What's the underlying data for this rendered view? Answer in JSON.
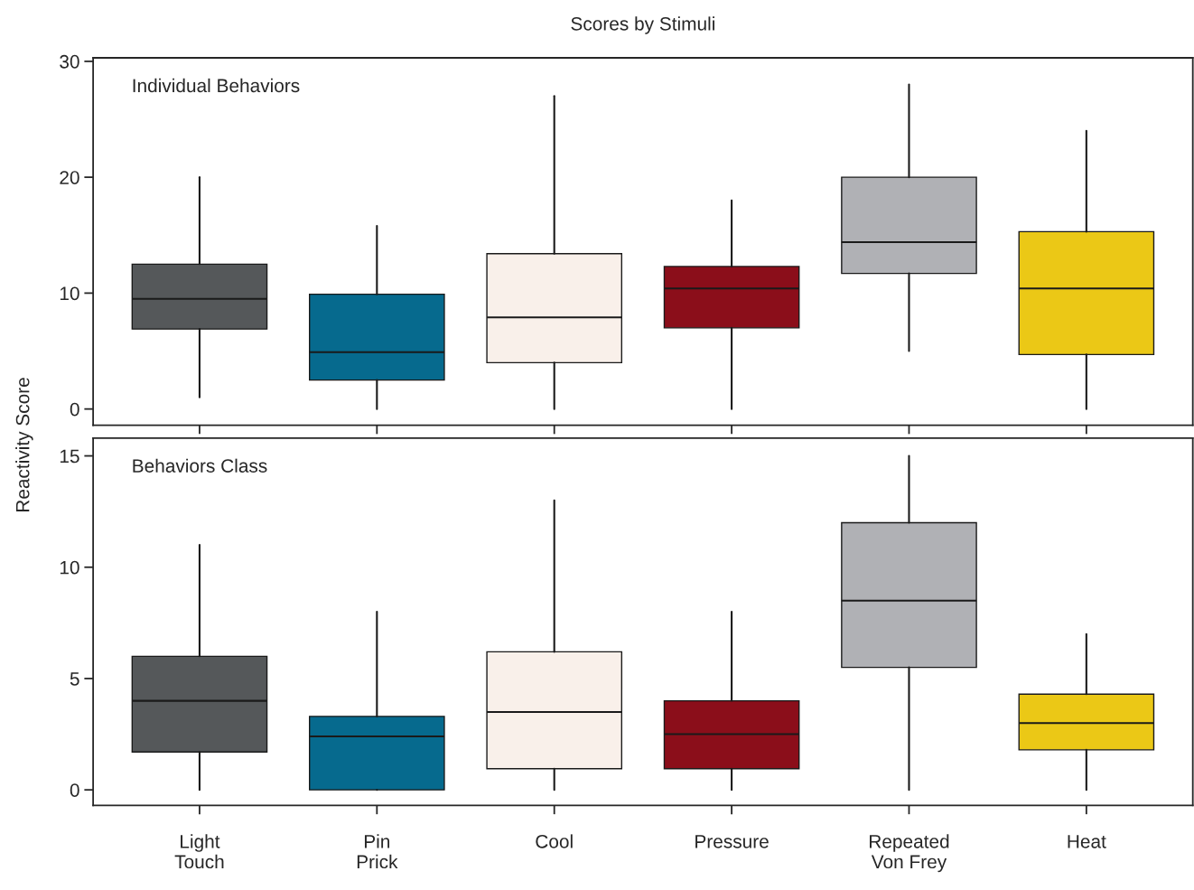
{
  "chart_data": [
    {
      "type": "box",
      "title": "Scores by Stimuli",
      "ylabel": "Reactivity Score",
      "annotations": [
        "Individual Behaviors"
      ],
      "colors": [
        "#55585a",
        "#066a8e",
        "#f9f0ea",
        "#8b0e1a",
        "#b0b1b5",
        "#ebc816"
      ],
      "boxes": [
        {
          "low": 1,
          "q1": 6.9,
          "median": 9.5,
          "q3": 12.5,
          "high": 20
        },
        {
          "low": 0,
          "q1": 2.5,
          "median": 4.9,
          "q3": 9.9,
          "high": 15.8
        },
        {
          "low": 0,
          "q1": 4.0,
          "median": 7.9,
          "q3": 13.4,
          "high": 27
        },
        {
          "low": 0,
          "q1": 7.0,
          "median": 10.4,
          "q3": 12.3,
          "high": 18
        },
        {
          "low": 5,
          "q1": 11.7,
          "median": 14.4,
          "q3": 20,
          "high": 28
        },
        {
          "low": 0,
          "q1": 4.7,
          "median": 10.4,
          "q3": 15.3,
          "high": 24
        }
      ],
      "ylim": [
        -1.4,
        30.3
      ],
      "yticks": [
        0,
        10,
        20,
        30
      ],
      "tick_labels": "y",
      "grid": false,
      "legend": false
    },
    {
      "type": "box",
      "annotations": [
        "Behaviors Class"
      ],
      "categories": [
        "Light\nTouch",
        "Pin\nPrick",
        "Cool",
        "Pressure",
        "Repeated\nVon Frey",
        "Heat"
      ],
      "colors": [
        "#55585a",
        "#066a8e",
        "#f9f0ea",
        "#8b0e1a",
        "#b0b1b5",
        "#ebc816"
      ],
      "boxes": [
        {
          "low": 0,
          "q1": 1.7,
          "median": 4,
          "q3": 6,
          "high": 11
        },
        {
          "low": 0,
          "q1": 0,
          "median": 2.4,
          "q3": 3.3,
          "high": 8
        },
        {
          "low": 0,
          "q1": 0.95,
          "median": 3.5,
          "q3": 6.2,
          "high": 13
        },
        {
          "low": 0,
          "q1": 0.95,
          "median": 2.5,
          "q3": 4.0,
          "high": 8
        },
        {
          "low": 0,
          "q1": 5.5,
          "median": 8.5,
          "q3": 12,
          "high": 15
        },
        {
          "low": 0,
          "q1": 1.8,
          "median": 3.0,
          "q3": 4.3,
          "high": 7
        }
      ],
      "ylim": [
        -0.7,
        15.8
      ],
      "yticks": [
        0,
        5,
        10,
        15
      ],
      "grid": false,
      "legend": false
    }
  ]
}
